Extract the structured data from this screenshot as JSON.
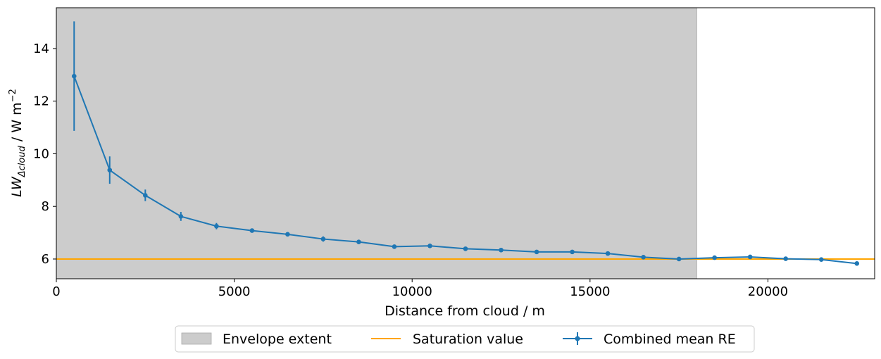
{
  "chart_data": {
    "type": "line",
    "xlabel": "Distance from cloud / m",
    "ylabel": {
      "prefix": "LW",
      "subscript": "Δcloud",
      "units": " / W m",
      "units_exponent": "−2"
    },
    "xlim": [
      0,
      23000
    ],
    "ylim": [
      5.25,
      15.55
    ],
    "x_ticks": [
      0,
      5000,
      10000,
      15000,
      20000
    ],
    "x_tick_labels": [
      "0",
      "5000",
      "10000",
      "15000",
      "20000"
    ],
    "y_ticks": [
      6,
      8,
      10,
      12,
      14
    ],
    "y_tick_labels": [
      "6",
      "8",
      "10",
      "12",
      "14"
    ],
    "grid": false,
    "legend_position": "bottom-center",
    "envelope": {
      "name": "Envelope extent",
      "x_range": [
        0,
        18000
      ],
      "color": "#cccccc"
    },
    "saturation": {
      "name": "Saturation value",
      "y": 6.0,
      "color": "#ffa500"
    },
    "series": [
      {
        "name": "Combined mean RE",
        "color": "#1f77b4",
        "x": [
          500,
          1500,
          2500,
          3500,
          4500,
          5500,
          6500,
          7500,
          8500,
          9500,
          10500,
          11500,
          12500,
          13500,
          14500,
          15500,
          16500,
          17500,
          18500,
          19500,
          20500,
          21500,
          22500
        ],
        "values": [
          12.95,
          9.38,
          8.42,
          7.62,
          7.25,
          7.08,
          6.94,
          6.76,
          6.65,
          6.47,
          6.5,
          6.39,
          6.34,
          6.27,
          6.27,
          6.21,
          6.07,
          6.0,
          6.05,
          6.08,
          6.01,
          5.98,
          5.83
        ],
        "errors": [
          2.08,
          0.52,
          0.22,
          0.17,
          0.12,
          0.05,
          0.05,
          0.1,
          0.05,
          0.05,
          0.04,
          0.04,
          0.03,
          0.03,
          0.04,
          0.04,
          0.04,
          0.03,
          0.04,
          0.05,
          0.05,
          0.04,
          0.04
        ]
      }
    ]
  }
}
